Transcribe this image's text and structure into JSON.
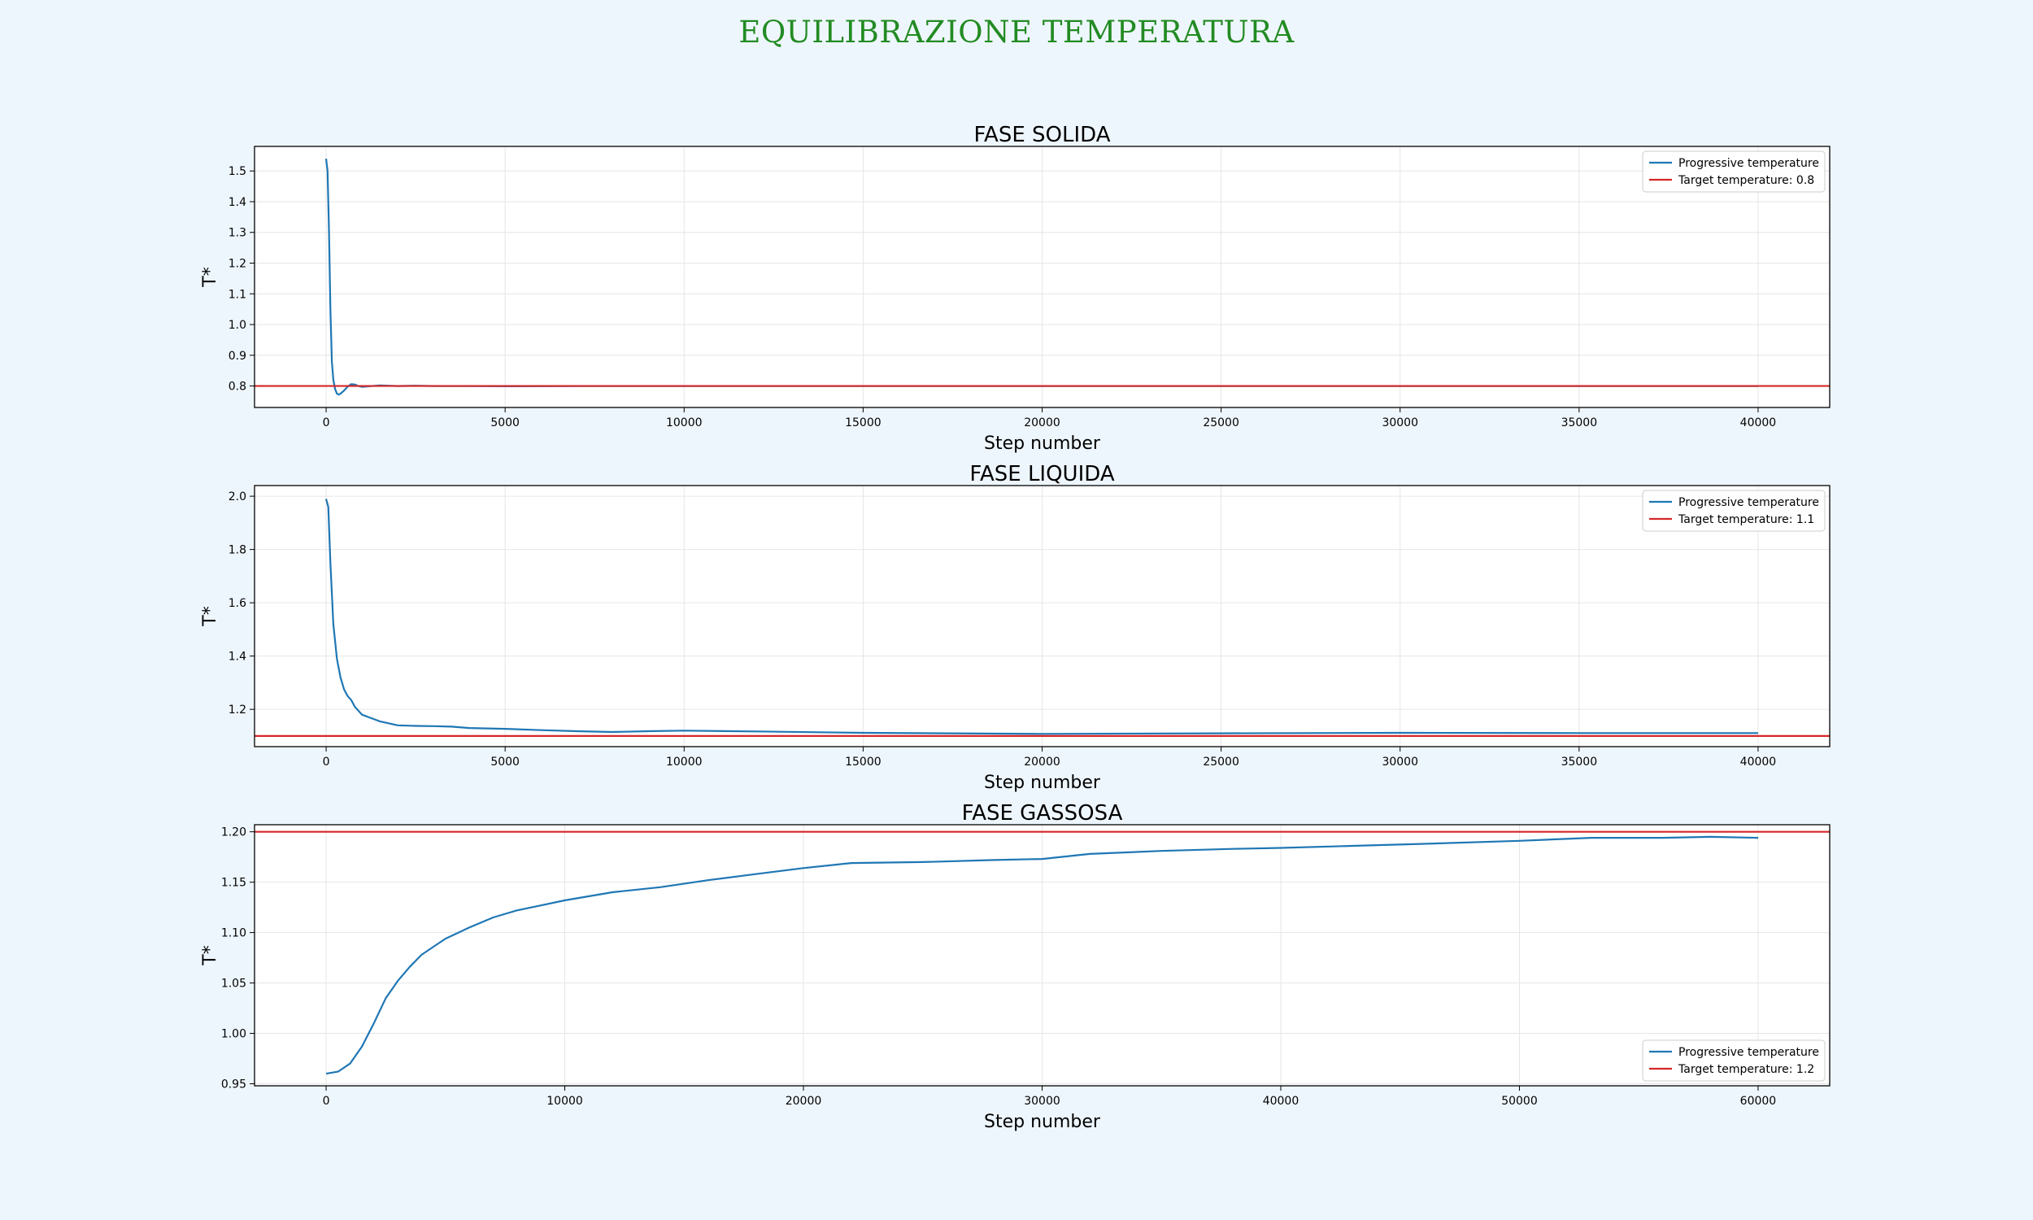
{
  "suptitle": "EQUILIBRAZIONE TEMPERATURA",
  "colors": {
    "progressive": "#1f77b4",
    "target": "#d62728",
    "title": "#228b22",
    "grid": "#e6e6e6",
    "background": "#eef6fd"
  },
  "chart_data": [
    {
      "type": "line",
      "title": "FASE SOLIDA",
      "xlabel": "Step number",
      "ylabel": "T*",
      "xlim": [
        -2000,
        42000
      ],
      "ylim": [
        0.73,
        1.58
      ],
      "xticks": [
        0,
        5000,
        10000,
        15000,
        20000,
        25000,
        30000,
        35000,
        40000
      ],
      "yticks": [
        0.8,
        0.9,
        1.0,
        1.1,
        1.2,
        1.3,
        1.4,
        1.5
      ],
      "ytick_decimals": 1,
      "grid": true,
      "legend_position": "upper right",
      "series": [
        {
          "name": "Progressive temperature",
          "color": "#1f77b4",
          "x": [
            0,
            40,
            80,
            120,
            160,
            200,
            250,
            300,
            350,
            400,
            500,
            600,
            700,
            800,
            900,
            1000,
            1200,
            1500,
            2000,
            2500,
            3000,
            4000,
            5000,
            7000,
            10000,
            15000,
            20000,
            25000,
            30000,
            35000,
            40000
          ],
          "y": [
            1.54,
            1.5,
            1.3,
            1.05,
            0.88,
            0.82,
            0.79,
            0.775,
            0.772,
            0.775,
            0.785,
            0.798,
            0.806,
            0.805,
            0.8,
            0.797,
            0.799,
            0.802,
            0.8,
            0.801,
            0.8,
            0.8,
            0.799,
            0.8,
            0.8,
            0.8,
            0.8,
            0.8,
            0.8,
            0.8,
            0.8
          ]
        },
        {
          "name": "Target temperature: 0.8",
          "color": "#d62728",
          "hline": 0.8
        }
      ]
    },
    {
      "type": "line",
      "title": "FASE LIQUIDA",
      "xlabel": "Step number",
      "ylabel": "T*",
      "xlim": [
        -2000,
        42000
      ],
      "ylim": [
        1.06,
        2.04
      ],
      "xticks": [
        0,
        5000,
        10000,
        15000,
        20000,
        25000,
        30000,
        35000,
        40000
      ],
      "yticks": [
        1.2,
        1.4,
        1.6,
        1.8,
        2.0
      ],
      "ytick_decimals": 1,
      "grid": true,
      "legend_position": "upper right",
      "series": [
        {
          "name": "Progressive temperature",
          "color": "#1f77b4",
          "x": [
            0,
            60,
            120,
            200,
            300,
            400,
            500,
            600,
            700,
            800,
            1000,
            1200,
            1500,
            2000,
            2500,
            3000,
            3500,
            4000,
            5000,
            6000,
            7000,
            8000,
            9000,
            10000,
            12000,
            15000,
            20000,
            25000,
            30000,
            35000,
            40000
          ],
          "y": [
            1.99,
            1.96,
            1.75,
            1.52,
            1.39,
            1.32,
            1.275,
            1.25,
            1.235,
            1.21,
            1.18,
            1.17,
            1.155,
            1.14,
            1.138,
            1.137,
            1.135,
            1.13,
            1.127,
            1.122,
            1.118,
            1.115,
            1.118,
            1.12,
            1.117,
            1.112,
            1.108,
            1.11,
            1.112,
            1.111,
            1.111
          ]
        },
        {
          "name": "Target temperature: 1.1",
          "color": "#d62728",
          "hline": 1.1
        }
      ]
    },
    {
      "type": "line",
      "title": "FASE GASSOSA",
      "xlabel": "Step number",
      "ylabel": "T*",
      "xlim": [
        -3000,
        63000
      ],
      "ylim": [
        0.948,
        1.207
      ],
      "xticks": [
        0,
        10000,
        20000,
        30000,
        40000,
        50000,
        60000
      ],
      "yticks": [
        0.95,
        1.0,
        1.05,
        1.1,
        1.15,
        1.2
      ],
      "ytick_decimals": 2,
      "grid": true,
      "legend_position": "lower right",
      "series": [
        {
          "name": "Progressive temperature",
          "color": "#1f77b4",
          "x": [
            0,
            500,
            1000,
            1500,
            2000,
            2500,
            3000,
            3500,
            4000,
            5000,
            6000,
            7000,
            8000,
            9000,
            10000,
            12000,
            14000,
            16000,
            18000,
            20000,
            22000,
            25000,
            28000,
            30000,
            32000,
            35000,
            38000,
            40000,
            43000,
            46000,
            50000,
            53000,
            56000,
            58000,
            60000
          ],
          "y": [
            0.96,
            0.962,
            0.97,
            0.987,
            1.01,
            1.035,
            1.052,
            1.066,
            1.078,
            1.094,
            1.105,
            1.115,
            1.122,
            1.127,
            1.132,
            1.14,
            1.145,
            1.152,
            1.158,
            1.164,
            1.169,
            1.17,
            1.172,
            1.173,
            1.178,
            1.181,
            1.183,
            1.184,
            1.186,
            1.188,
            1.191,
            1.194,
            1.194,
            1.195,
            1.194
          ]
        },
        {
          "name": "Target temperature: 1.2",
          "color": "#d62728",
          "hline": 1.2
        }
      ]
    }
  ]
}
